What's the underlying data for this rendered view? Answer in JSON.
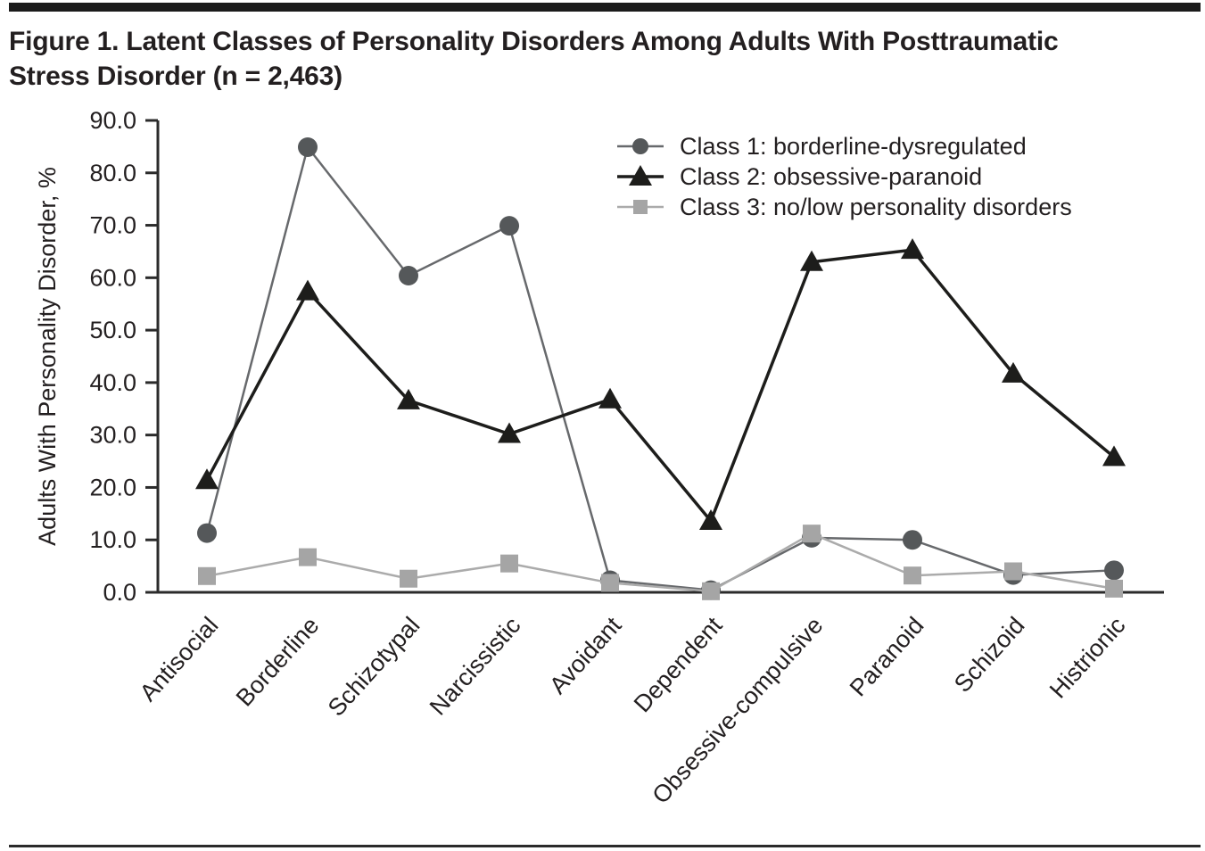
{
  "figure": {
    "title_line1": "Figure 1. Latent Classes of Personality Disorders Among Adults With Posttraumatic",
    "title_line2": "Stress Disorder (n = 2,463)"
  },
  "chart_data": {
    "type": "line",
    "title": "Figure 1. Latent Classes of Personality Disorders Among Adults With Posttraumatic Stress Disorder (n = 2,463)",
    "xlabel": "",
    "ylabel": "Adults With Personality Disorder, %",
    "ylim": [
      0,
      90
    ],
    "yticks": [
      0,
      10,
      20,
      30,
      40,
      50,
      60,
      70,
      80,
      90
    ],
    "ytick_format_decimals": 1,
    "grid": false,
    "legend_position": "top-right-inside",
    "categories": [
      "Antisocial",
      "Borderline",
      "Schizotypal",
      "Narcissistic",
      "Avoidant",
      "Dependent",
      "Obsessive-compulsive",
      "Paranoid",
      "Schizoid",
      "Histrionic"
    ],
    "series": [
      {
        "name": "Class 1: borderline-dysregulated",
        "marker": "circle",
        "marker_color": "#55585a",
        "line_color": "#67696c",
        "values": [
          11.3,
          84.9,
          60.4,
          69.9,
          2.3,
          0.4,
          10.4,
          10.0,
          3.3,
          4.2
        ]
      },
      {
        "name": "Class 2: obsessive-paranoid",
        "marker": "triangle",
        "marker_color": "#1d1d1b",
        "line_color": "#1d1d1b",
        "values": [
          21.4,
          57.4,
          36.6,
          30.2,
          36.8,
          13.6,
          63.0,
          65.3,
          41.7,
          25.8
        ]
      },
      {
        "name": "Class 3: no/low personality disorders",
        "marker": "square",
        "marker_color": "#a5a5a5",
        "line_color": "#ababab",
        "values": [
          3.1,
          6.7,
          2.6,
          5.5,
          1.8,
          0.2,
          11.2,
          3.2,
          4.0,
          0.7
        ]
      }
    ],
    "axis_color": "#2b2b2b",
    "text_color": "#231f20"
  }
}
